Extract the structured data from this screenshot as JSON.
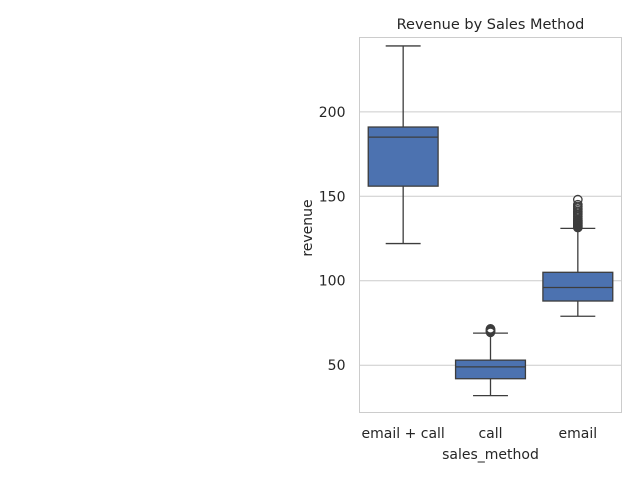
{
  "chart_data": {
    "type": "box",
    "title": "Revenue by Sales Method",
    "xlabel": "sales_method",
    "ylabel": "revenue",
    "categories": [
      "email + call",
      "call",
      "email"
    ],
    "ylim": [
      22,
      244
    ],
    "yticks": [
      50,
      100,
      150,
      200
    ],
    "grid": "horizontal",
    "colors": {
      "box_fill": "#4c72b0",
      "line": "#3d3d3d",
      "grid": "#cccccc",
      "frame": "#cccccc",
      "text": "#262626"
    },
    "boxes": [
      {
        "category": "email + call",
        "whisker_low": 122,
        "q1": 156,
        "median": 185,
        "q3": 191,
        "whisker_high": 239,
        "outliers": []
      },
      {
        "category": "call",
        "whisker_low": 32,
        "q1": 42,
        "median": 49,
        "q3": 53,
        "whisker_high": 69,
        "outliers": [
          69.5,
          70,
          70.5,
          71,
          71.5
        ]
      },
      {
        "category": "email",
        "whisker_low": 79,
        "q1": 88,
        "median": 96,
        "q3": 105,
        "whisker_high": 131,
        "outliers": [
          131.5,
          132,
          132.5,
          133,
          133.5,
          134,
          134.5,
          135,
          135.5,
          136,
          137,
          138,
          139,
          140,
          141,
          142,
          143,
          144,
          145,
          148
        ]
      }
    ]
  }
}
